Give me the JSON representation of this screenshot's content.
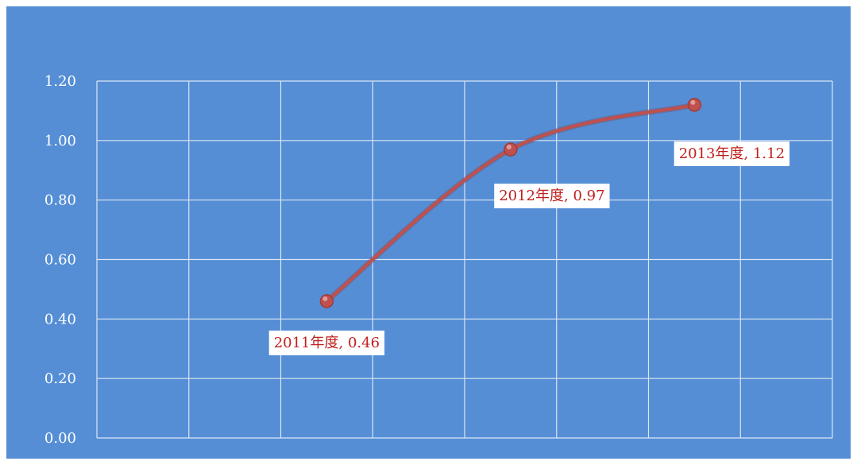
{
  "chart_data": {
    "type": "line",
    "title": "",
    "xlabel": "",
    "ylabel": "",
    "ylim": [
      0,
      1.2
    ],
    "y_ticks": [
      "0.00",
      "0.20",
      "0.40",
      "0.60",
      "0.80",
      "1.00",
      "1.20"
    ],
    "grid": true,
    "legend": "none",
    "categories": [
      "",
      "",
      "2011年度",
      "",
      "2012年度",
      "",
      "2013年度",
      ""
    ],
    "series": [
      {
        "values": [
          null,
          null,
          0.46,
          null,
          0.97,
          null,
          1.12,
          null
        ],
        "labels": [
          "",
          "",
          "2011年度, 0.46",
          "",
          "2012年度, 0.97",
          "",
          "2013年度, 1.12",
          ""
        ],
        "color": "#c0504d"
      }
    ],
    "colors": {
      "plot_background": "#558ed5",
      "line": "#c0504d",
      "label_text": "#c0201e",
      "label_background": "#ffffff",
      "gridline": "#dbe6f4",
      "tick_text": "#ffffff"
    }
  }
}
